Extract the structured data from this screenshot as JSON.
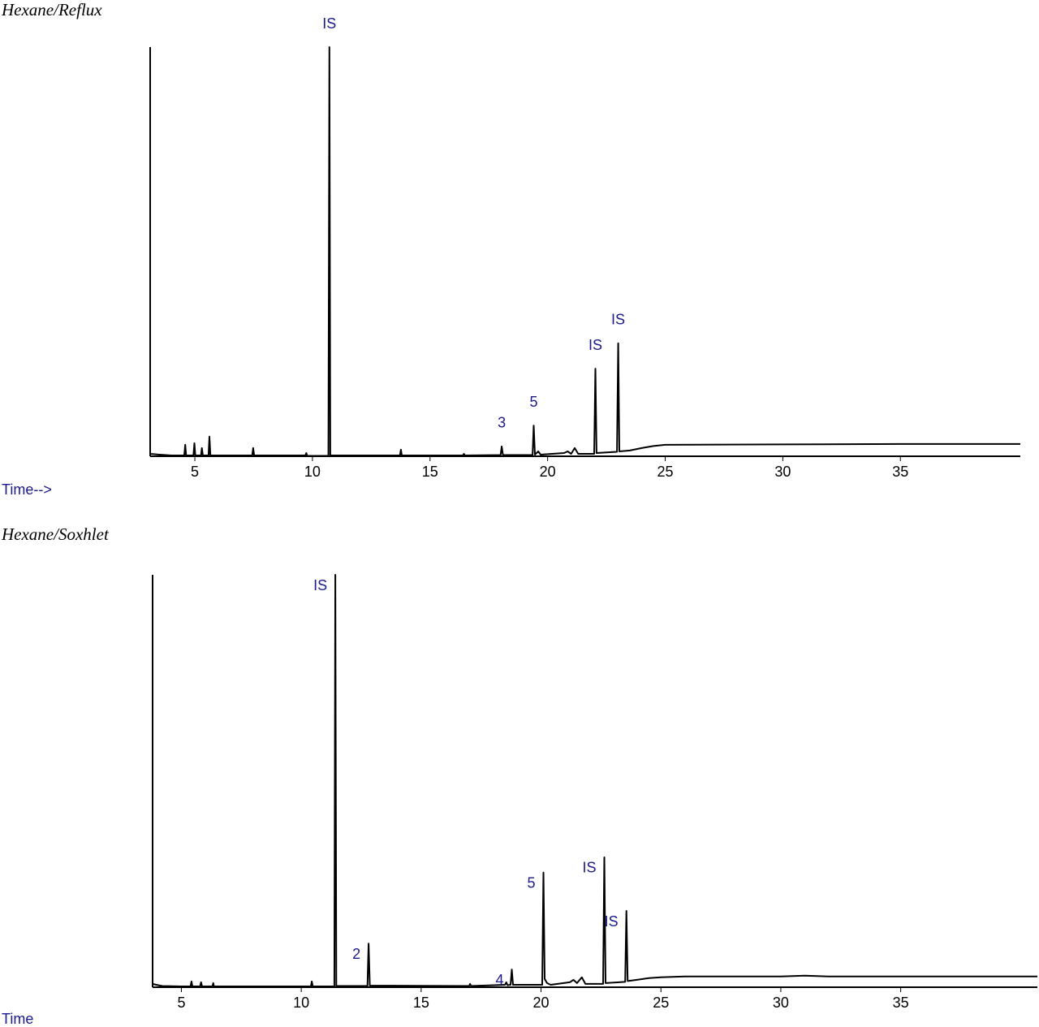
{
  "chart_data": [
    {
      "type": "line",
      "title": "Hexane/Reflux",
      "x_label": "Time-->",
      "color": "#000000",
      "annotation_color": "#1a1a8c",
      "xlim": [
        3.1,
        40.1
      ],
      "ylim": [
        0,
        100
      ],
      "xticks": [
        5,
        10,
        15,
        20,
        25,
        30,
        35
      ],
      "x": [
        3.1,
        3.5,
        4.0,
        4.55,
        4.59,
        4.63,
        4.94,
        4.98,
        5.02,
        5.26,
        5.3,
        5.34,
        5.58,
        5.62,
        5.66,
        6.0,
        7.44,
        7.48,
        7.52,
        9.7,
        9.74,
        9.78,
        10.68,
        10.72,
        10.76,
        13.72,
        13.76,
        13.8,
        16.4,
        16.44,
        16.48,
        18.0,
        18.05,
        18.1,
        19.36,
        19.41,
        19.46,
        19.6,
        19.7,
        20.7,
        20.85,
        21.0,
        21.15,
        21.3,
        21.98,
        22.03,
        22.08,
        22.95,
        23.0,
        23.05,
        23.5,
        24.0,
        24.5,
        25.0,
        30,
        35,
        40.1
      ],
      "values": [
        0.6,
        0.4,
        0.2,
        0.2,
        2.8,
        0.2,
        0.2,
        3.2,
        0.2,
        0.2,
        2,
        0.2,
        0.2,
        4.8,
        0.2,
        0.2,
        0.2,
        2,
        0.2,
        0.2,
        0.8,
        0.1,
        0.1,
        100,
        0.2,
        0.2,
        1.6,
        0.2,
        0.2,
        0.6,
        0.2,
        0.3,
        2.4,
        0.3,
        0.3,
        7.5,
        0.4,
        1.2,
        0.4,
        0.8,
        1.2,
        0.6,
        2,
        0.6,
        0.6,
        21.4,
        0.8,
        1.1,
        27.6,
        1.2,
        1.4,
        2.0,
        2.5,
        2.8,
        2.9,
        3.0,
        3.0
      ],
      "annotations": [
        {
          "text": "IS",
          "x": 10.72,
          "y": 100
        },
        {
          "text": "3",
          "x": 18.05,
          "y": 2.4
        },
        {
          "text": "5",
          "x": 19.41,
          "y": 7.5
        },
        {
          "text": "IS",
          "x": 22.03,
          "y": 21.4
        },
        {
          "text": "IS",
          "x": 23.0,
          "y": 27.6
        }
      ]
    },
    {
      "type": "line",
      "title": "Hexane/Soxhlet",
      "x_label": "Time",
      "color": "#000000",
      "annotation_color": "#1a1a8c",
      "xlim": [
        3.8,
        40.7
      ],
      "ylim": [
        0,
        100
      ],
      "xticks": [
        5,
        10,
        15,
        20,
        25,
        30,
        35
      ],
      "x": [
        3.8,
        3.95,
        4.2,
        5.0,
        5.38,
        5.42,
        5.46,
        5.78,
        5.82,
        5.86,
        6.3,
        6.33,
        6.36,
        8.0,
        10.4,
        10.44,
        10.48,
        11.38,
        11.42,
        11.46,
        12.76,
        12.81,
        12.86,
        17.0,
        17.04,
        17.08,
        18.5,
        18.55,
        18.6,
        18.73,
        18.78,
        18.83,
        20.05,
        20.1,
        20.15,
        20.25,
        20.4,
        21.2,
        21.35,
        21.5,
        21.7,
        21.85,
        22.59,
        22.64,
        22.69,
        23.51,
        23.56,
        23.61,
        24.0,
        24.5,
        25.0,
        26.0,
        30.0,
        31,
        32,
        36,
        40.7
      ],
      "values": [
        0.8,
        0.6,
        0.3,
        0.2,
        0.2,
        1.4,
        0.2,
        0.2,
        1.2,
        0.2,
        0.2,
        1,
        0.2,
        0.2,
        0.2,
        1.4,
        0.2,
        0.2,
        100,
        0.3,
        0.3,
        10.6,
        0.4,
        0.3,
        0.8,
        0.3,
        0.6,
        1.2,
        0.5,
        0.6,
        4.3,
        0.6,
        0.6,
        27.8,
        2,
        1,
        0.6,
        1.2,
        1.8,
        1.0,
        2.4,
        0.8,
        0.8,
        31.5,
        1.0,
        1.3,
        18.5,
        1.5,
        1.8,
        2.2,
        2.4,
        2.6,
        2.6,
        2.8,
        2.6,
        2.6,
        2.6
      ],
      "annotations": [
        {
          "text": "IS",
          "x": 11.42,
          "y": 100
        },
        {
          "text": "2",
          "x": 12.81,
          "y": 10.6
        },
        {
          "text": "4",
          "x": 18.78,
          "y": 4.3
        },
        {
          "text": "5",
          "x": 20.1,
          "y": 27.8
        },
        {
          "text": "IS",
          "x": 22.64,
          "y": 31.5
        },
        {
          "text": "IS",
          "x": 23.56,
          "y": 18.5
        }
      ]
    }
  ]
}
